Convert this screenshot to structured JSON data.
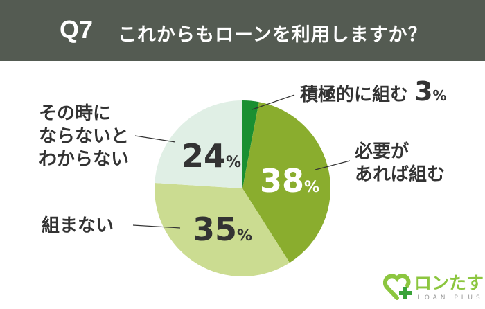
{
  "header": {
    "question": "Q7",
    "title": "これからもローンを利用しますか？"
  },
  "chart_data": {
    "type": "pie",
    "categories": [
      "積極的に組む",
      "必要があれば組む",
      "組まない",
      "その時にならないとわからない"
    ],
    "values": [
      3,
      38,
      35,
      24
    ],
    "value_labels": [
      "3",
      "38",
      "35",
      "24"
    ],
    "unit": "%",
    "colors": [
      "#1a8f31",
      "#8aad2e",
      "#cbdc91",
      "#e0efe5"
    ],
    "start": "top",
    "direction": "clockwise"
  },
  "labels": {
    "l0": "積極的に組む",
    "l1a": "必要が",
    "l1b": "あれば組む",
    "l2": "組まない",
    "l3a": "その時に",
    "l3b": "ならないと",
    "l3c": "わからない"
  },
  "logo": {
    "text": "ロンたす",
    "sub": "LOAN PLUS"
  }
}
